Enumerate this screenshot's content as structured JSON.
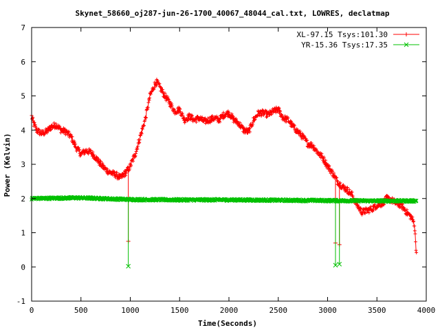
{
  "chart_data": {
    "type": "line",
    "title": "Skynet_58660_oj287-jun-26-1700_40067_48044_cal.txt, LOWRES, declatmap",
    "xlabel": "Time(Seconds)",
    "ylabel": "Power (Kelvin)",
    "xlim": [
      0,
      4000
    ],
    "ylim": [
      -1,
      7
    ],
    "xticks": [
      0,
      500,
      1000,
      1500,
      2000,
      2500,
      3000,
      3500,
      4000
    ],
    "yticks": [
      -1,
      0,
      1,
      2,
      3,
      4,
      5,
      6,
      7
    ],
    "grid": false,
    "legend_position": "top-right",
    "series": [
      {
        "name": "XL-97.15 Tsys:101.30",
        "color": "#ff0000",
        "marker": "plus",
        "noise": 0.09,
        "x": [
          0,
          20,
          50,
          100,
          150,
          200,
          250,
          300,
          350,
          400,
          450,
          500,
          550,
          600,
          650,
          700,
          750,
          800,
          850,
          900,
          950,
          980,
          1000,
          1050,
          1100,
          1150,
          1200,
          1250,
          1270,
          1300,
          1350,
          1400,
          1450,
          1500,
          1550,
          1600,
          1650,
          1700,
          1750,
          1800,
          1850,
          1900,
          1950,
          2000,
          2050,
          2100,
          2150,
          2200,
          2250,
          2300,
          2350,
          2400,
          2450,
          2500,
          2550,
          2600,
          2650,
          2700,
          2750,
          2800,
          2850,
          2900,
          2950,
          3000,
          3050,
          3100,
          3150,
          3200,
          3250,
          3300,
          3350,
          3400,
          3450,
          3500,
          3550,
          3600,
          3650,
          3700,
          3750,
          3800,
          3850,
          3880,
          3900
        ],
        "y": [
          4.4,
          4.2,
          4.0,
          3.9,
          3.95,
          4.1,
          4.15,
          4.0,
          3.95,
          3.8,
          3.5,
          3.3,
          3.4,
          3.35,
          3.2,
          3.0,
          2.85,
          2.75,
          2.7,
          2.6,
          2.75,
          2.85,
          2.95,
          3.3,
          3.8,
          4.3,
          5.0,
          5.35,
          5.4,
          5.25,
          5.0,
          4.8,
          4.55,
          4.6,
          4.3,
          4.4,
          4.3,
          4.35,
          4.25,
          4.3,
          4.35,
          4.3,
          4.45,
          4.5,
          4.3,
          4.2,
          4.0,
          3.95,
          4.3,
          4.5,
          4.5,
          4.45,
          4.55,
          4.6,
          4.35,
          4.3,
          4.1,
          3.95,
          3.8,
          3.6,
          3.55,
          3.35,
          3.2,
          2.95,
          2.75,
          2.5,
          2.35,
          2.25,
          2.1,
          1.8,
          1.6,
          1.65,
          1.7,
          1.8,
          1.85,
          2.0,
          1.95,
          1.85,
          1.8,
          1.6,
          1.45,
          1.25,
          0.4
        ],
        "dips": [
          [
            980,
            0.75
          ],
          [
            3080,
            0.7
          ],
          [
            3120,
            0.65
          ]
        ]
      },
      {
        "name": "YR-15.36 Tsys:17.35",
        "color": "#00c000",
        "marker": "cross",
        "noise": 0.03,
        "x": [
          0,
          500,
          1000,
          1500,
          2000,
          2500,
          3000,
          3500,
          3900
        ],
        "y": [
          2.0,
          2.02,
          1.97,
          1.96,
          1.96,
          1.95,
          1.94,
          1.93,
          1.93
        ],
        "dips": [
          [
            980,
            0.02
          ],
          [
            3080,
            0.05
          ],
          [
            3120,
            0.08
          ]
        ]
      }
    ]
  }
}
